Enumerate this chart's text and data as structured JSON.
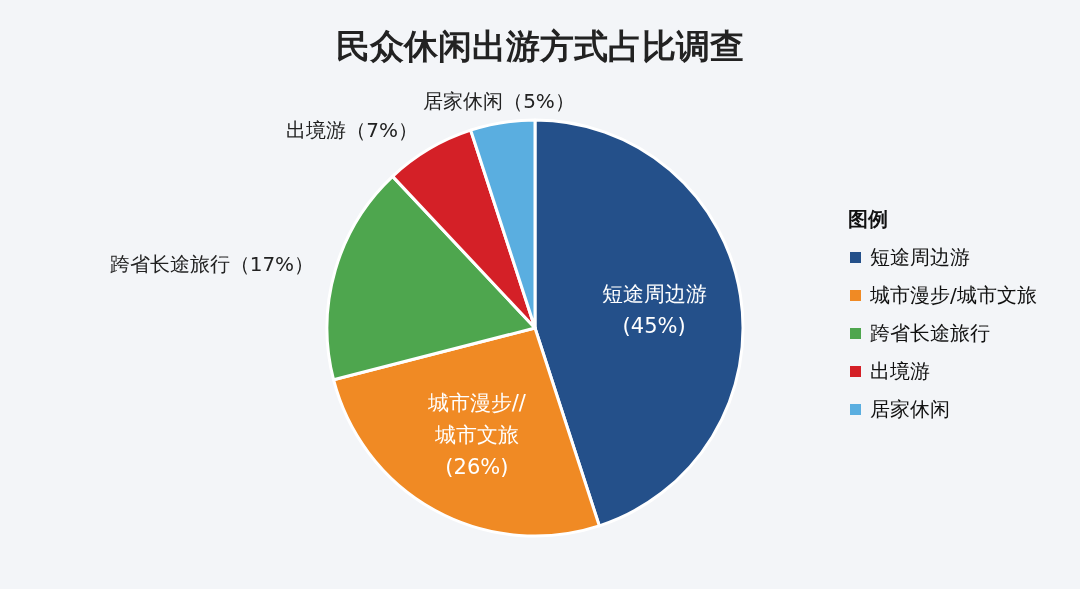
{
  "chart_data": {
    "type": "pie",
    "title": "民众休闲出游方式占比调查",
    "legend_title": "图例",
    "legend": "right",
    "categories": [
      "短途周边游",
      "城市漫步/城市文旅",
      "跨省长途旅行",
      "出境游",
      "居家休闲"
    ],
    "values": [
      45,
      26,
      17,
      7,
      5
    ],
    "colors": [
      "#24508a",
      "#f08a24",
      "#4ea64e",
      "#d42027",
      "#5aaee0"
    ],
    "value_labels": [
      "短途周边游 (45%)",
      "城市漫步// 城市文旅 (26%)",
      "跨省长途旅行（17%）",
      "出境游（7%）",
      "居家休闲（5%）"
    ]
  }
}
